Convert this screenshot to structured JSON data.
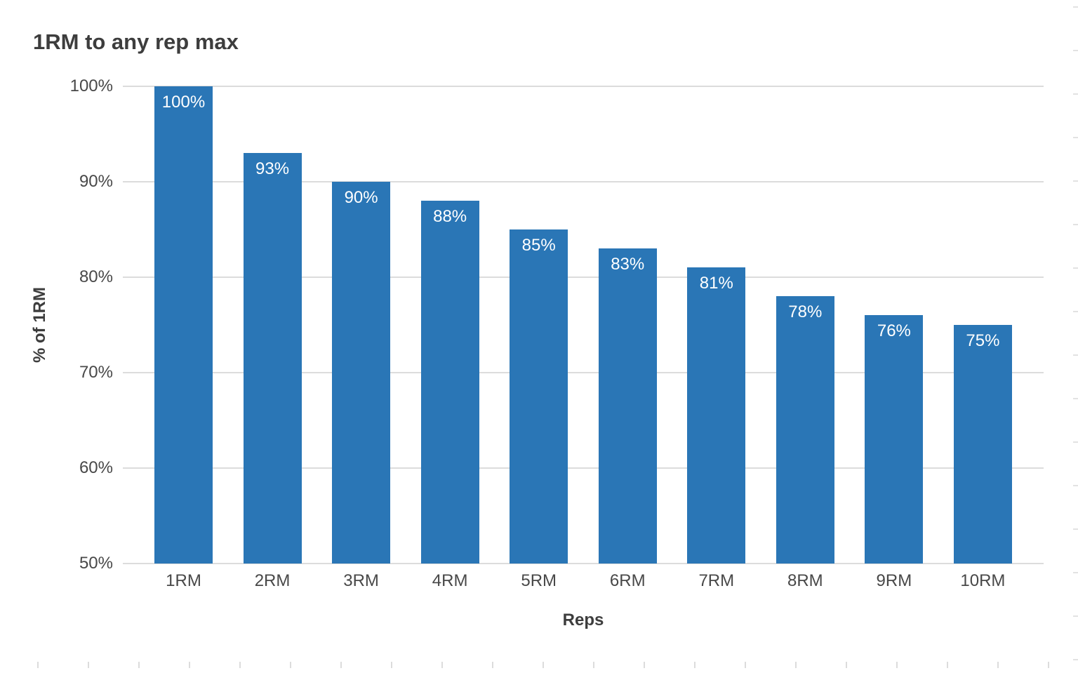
{
  "chart_data": {
    "type": "bar",
    "title": "1RM to any rep max",
    "categories": [
      "1RM",
      "2RM",
      "3RM",
      "4RM",
      "5RM",
      "6RM",
      "7RM",
      "8RM",
      "9RM",
      "10RM"
    ],
    "values": [
      100,
      93,
      90,
      88,
      85,
      83,
      81,
      78,
      76,
      75
    ],
    "value_labels": [
      "100%",
      "93%",
      "90%",
      "88%",
      "85%",
      "83%",
      "81%",
      "78%",
      "76%",
      "75%"
    ],
    "xlabel": "Reps",
    "ylabel": "% of 1RM",
    "ylim": [
      50,
      100
    ],
    "yticks": [
      "100%",
      "90%",
      "80%",
      "70%",
      "60%",
      "50%"
    ],
    "grid": "horizontal",
    "legend": "none",
    "bar_color": "#2a76b6",
    "bar_label_color": "#ffffff",
    "title_color": "#3d3d3d",
    "axis_text_color": "#484848",
    "gridline_color": "#dcdcdc",
    "background_color": "#ffffff"
  }
}
